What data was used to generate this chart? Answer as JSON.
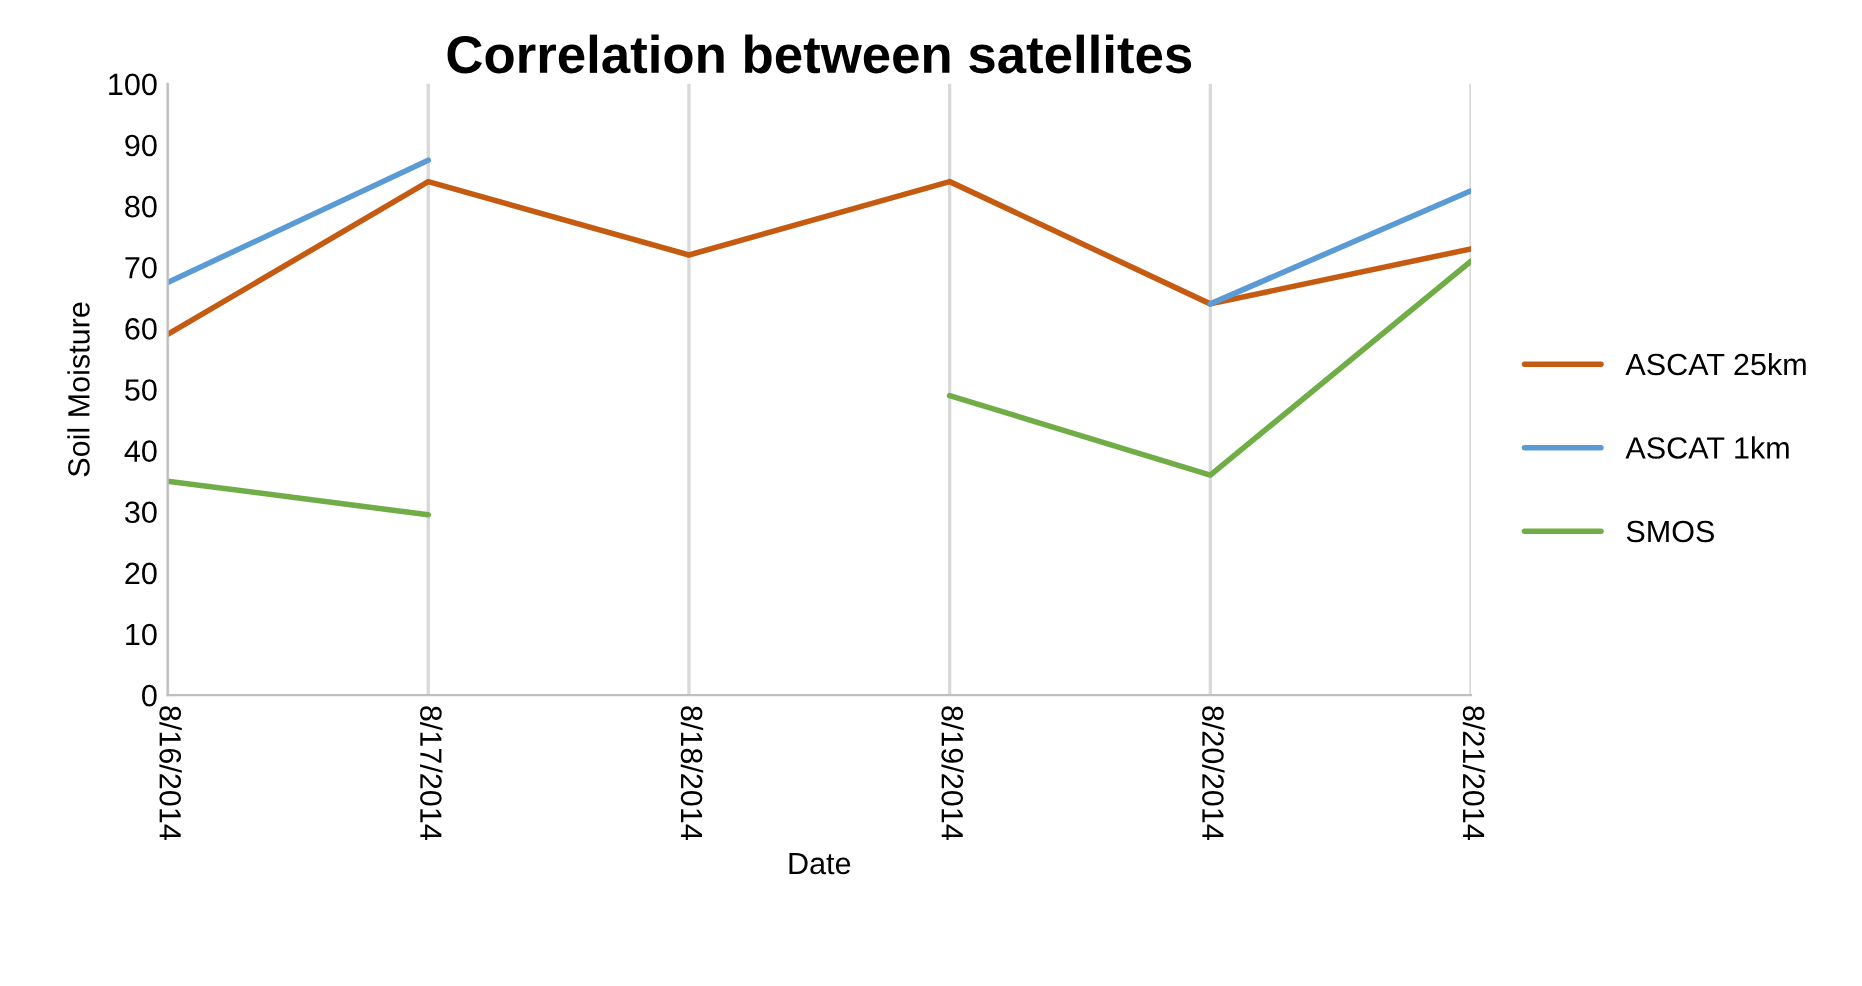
{
  "chart_data": {
    "type": "line",
    "title": "Correlation between satellites",
    "xlabel": "Date",
    "ylabel": "Soil Moisture",
    "x": [
      "2014-08-16",
      "2014-08-17",
      "2014-08-18",
      "2014-08-19",
      "2014-08-20",
      "2014-08-21"
    ],
    "series": [
      {
        "name": "ASCAT 25km",
        "color": "#c55a11",
        "values": [
          59,
          84,
          72,
          84,
          64,
          73
        ]
      },
      {
        "name": "ASCAT 1km",
        "color": "#5b9bd5",
        "values": [
          67.5,
          87.5,
          null,
          null,
          64,
          82.5
        ]
      },
      {
        "name": "SMOS",
        "color": "#70ad47",
        "values": [
          35,
          29.5,
          null,
          49,
          36,
          71
        ]
      }
    ],
    "xlim": [
      "2014-08-16",
      "2014-08-21"
    ],
    "xticks": [
      {
        "value": "2014-08-16",
        "label": "8/16/2014"
      },
      {
        "value": "2014-08-17",
        "label": "8/17/2014"
      },
      {
        "value": "2014-08-18",
        "label": "8/18/2014"
      },
      {
        "value": "2014-08-19",
        "label": "8/19/2014"
      },
      {
        "value": "2014-08-20",
        "label": "8/20/2014"
      },
      {
        "value": "2014-08-21",
        "label": "8/21/2014"
      }
    ],
    "ylim": [
      0,
      100
    ],
    "yticks": [
      0,
      10,
      20,
      30,
      40,
      50,
      60,
      70,
      80,
      90,
      100
    ],
    "grid": "x",
    "legend": "right",
    "marker": "none",
    "line_style": "solid"
  }
}
